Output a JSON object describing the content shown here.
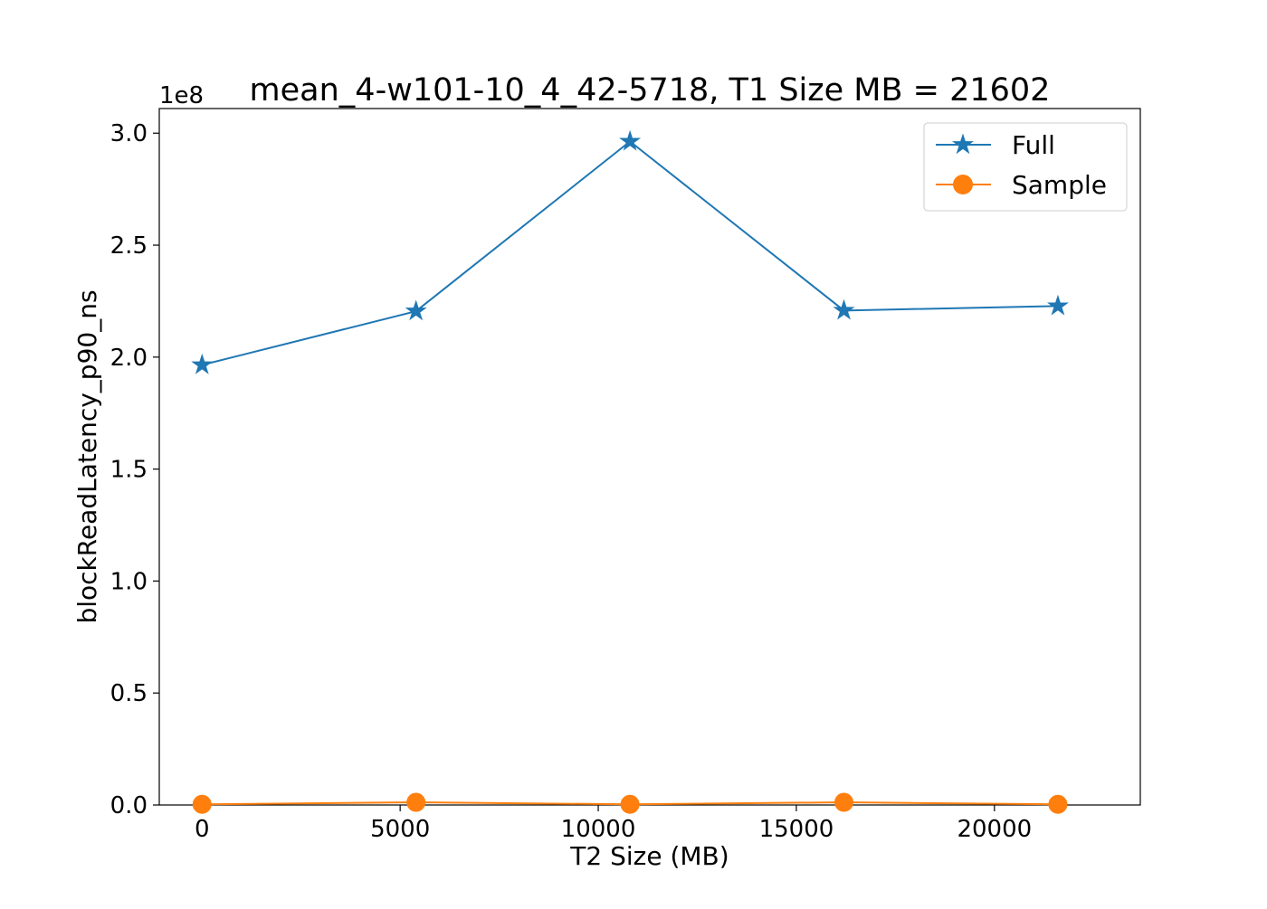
{
  "chart_data": {
    "type": "line",
    "title": "mean_4-w101-10_4_42-5718, T1 Size MB = 21602",
    "xlabel": "T2 Size (MB)",
    "ylabel": "blockReadLatency_p90_ns",
    "y_offset_label": "1e8",
    "xlim": [
      -1080,
      23682
    ],
    "ylim": [
      0,
      3.11
    ],
    "x_ticks": [
      0,
      5000,
      10000,
      15000,
      20000
    ],
    "x_tick_labels": [
      "0",
      "5000",
      "10000",
      "15000",
      "20000"
    ],
    "y_ticks": [
      0,
      0.5,
      1.0,
      1.5,
      2.0,
      2.5,
      3.0
    ],
    "y_tick_labels": [
      "0.0",
      "0.5",
      "1.0",
      "1.5",
      "2.0",
      "2.5",
      "3.0"
    ],
    "grid": false,
    "legend_position": "top-right",
    "x": [
      0,
      5400,
      10801,
      16201,
      21602
    ],
    "series": [
      {
        "name": "Full",
        "color": "#1f77b4",
        "marker": "star",
        "values": [
          1.965,
          2.205,
          2.963,
          2.208,
          2.228
        ]
      },
      {
        "name": "Sample",
        "color": "#ff7f0e",
        "marker": "circle",
        "values": [
          0.003,
          0.012,
          0.003,
          0.012,
          0.003
        ]
      }
    ]
  }
}
